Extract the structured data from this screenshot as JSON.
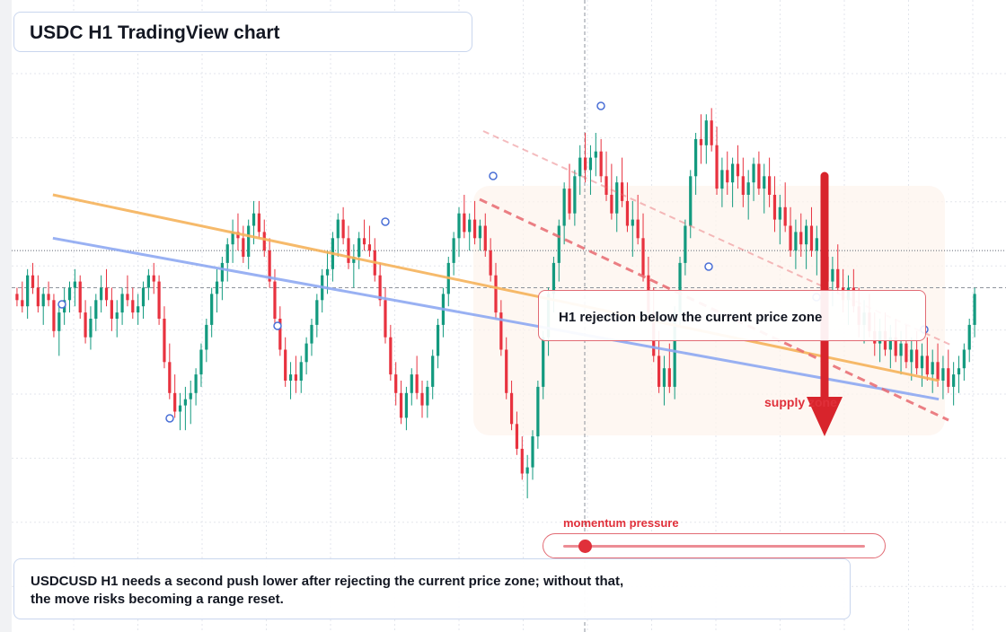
{
  "header": {
    "title": "USDC H1 TradingView chart"
  },
  "annotations": {
    "callout": "H1 rejection below the current price zone",
    "zone_label": "supply zone",
    "momentum_label": "momentum pressure",
    "momentum_level": 0.07
  },
  "note": {
    "line1": "USDCUSD H1 needs a second push lower after rejecting the current price zone; without that,",
    "line2": "the move risks becoming a range reset."
  },
  "colors": {
    "bull": "#139a7f",
    "bear": "#e8323f",
    "orange_trend": "#f6b35b",
    "blue_trend": "#8ea9f2",
    "bearish_channel": "#e86a70",
    "arrow": "#d8242c"
  },
  "chart_data": {
    "type": "candlestick",
    "title": "USDC H1 TradingView chart",
    "xlabel": "",
    "ylabel": "",
    "ylim": [
      0,
      100
    ],
    "grid": true,
    "current_price": 55,
    "series": [
      {
        "values": [
          [
            54,
            55,
            52,
            53
          ],
          [
            53,
            56,
            51,
            52
          ],
          [
            52,
            58,
            50,
            57
          ],
          [
            57,
            59,
            54,
            55
          ],
          [
            55,
            57,
            51,
            52
          ],
          [
            52,
            55,
            49,
            54
          ],
          [
            54,
            56,
            52,
            53
          ],
          [
            53,
            54,
            47,
            48
          ],
          [
            48,
            52,
            44,
            51
          ],
          [
            51,
            55,
            49,
            53
          ],
          [
            53,
            56,
            51,
            55
          ],
          [
            55,
            58,
            52,
            56
          ],
          [
            56,
            57,
            50,
            51
          ],
          [
            51,
            53,
            46,
            47
          ],
          [
            47,
            52,
            45,
            50
          ],
          [
            50,
            54,
            48,
            53
          ],
          [
            53,
            57,
            51,
            55
          ],
          [
            55,
            58,
            52,
            53
          ],
          [
            53,
            55,
            48,
            50
          ],
          [
            50,
            53,
            47,
            51
          ],
          [
            51,
            55,
            49,
            54
          ],
          [
            54,
            57,
            52,
            53
          ],
          [
            53,
            55,
            50,
            51
          ],
          [
            51,
            54,
            49,
            52
          ],
          [
            52,
            56,
            50,
            55
          ],
          [
            55,
            58,
            53,
            57
          ],
          [
            57,
            59,
            54,
            56
          ],
          [
            56,
            57,
            49,
            50
          ],
          [
            50,
            52,
            42,
            43
          ],
          [
            43,
            46,
            37,
            38
          ],
          [
            38,
            41,
            34,
            35
          ],
          [
            35,
            38,
            32,
            36
          ],
          [
            36,
            39,
            32,
            37
          ],
          [
            37,
            40,
            33,
            38
          ],
          [
            38,
            42,
            36,
            41
          ],
          [
            41,
            46,
            39,
            45
          ],
          [
            45,
            50,
            43,
            49
          ],
          [
            49,
            55,
            47,
            54
          ],
          [
            54,
            58,
            51,
            56
          ],
          [
            56,
            60,
            53,
            59
          ],
          [
            59,
            63,
            56,
            62
          ],
          [
            62,
            66,
            59,
            64
          ],
          [
            64,
            67,
            61,
            63
          ],
          [
            63,
            65,
            59,
            60
          ],
          [
            60,
            66,
            58,
            65
          ],
          [
            65,
            69,
            62,
            67
          ],
          [
            67,
            69,
            63,
            64
          ],
          [
            64,
            66,
            60,
            61
          ],
          [
            61,
            63,
            55,
            56
          ],
          [
            56,
            58,
            49,
            50
          ],
          [
            50,
            52,
            44,
            45
          ],
          [
            45,
            47,
            39,
            40
          ],
          [
            40,
            43,
            37,
            41
          ],
          [
            41,
            44,
            38,
            40
          ],
          [
            40,
            44,
            38,
            43
          ],
          [
            43,
            47,
            41,
            46
          ],
          [
            46,
            50,
            44,
            49
          ],
          [
            49,
            54,
            47,
            53
          ],
          [
            53,
            58,
            51,
            57
          ],
          [
            57,
            61,
            54,
            58
          ],
          [
            58,
            64,
            56,
            63
          ],
          [
            63,
            67,
            60,
            66
          ],
          [
            66,
            68,
            62,
            63
          ],
          [
            63,
            65,
            58,
            59
          ],
          [
            59,
            62,
            55,
            60
          ],
          [
            60,
            64,
            58,
            63
          ],
          [
            63,
            66,
            61,
            62
          ],
          [
            62,
            65,
            60,
            61
          ],
          [
            61,
            63,
            56,
            57
          ],
          [
            57,
            59,
            52,
            53
          ],
          [
            53,
            55,
            46,
            47
          ],
          [
            47,
            49,
            40,
            41
          ],
          [
            41,
            43,
            36,
            38
          ],
          [
            38,
            40,
            33,
            34
          ],
          [
            34,
            39,
            32,
            38
          ],
          [
            38,
            42,
            36,
            41
          ],
          [
            41,
            44,
            37,
            38
          ],
          [
            38,
            40,
            34,
            36
          ],
          [
            36,
            40,
            34,
            39
          ],
          [
            39,
            45,
            37,
            44
          ],
          [
            44,
            50,
            42,
            49
          ],
          [
            49,
            55,
            47,
            54
          ],
          [
            54,
            60,
            52,
            59
          ],
          [
            59,
            64,
            57,
            63
          ],
          [
            63,
            68,
            60,
            67
          ],
          [
            67,
            70,
            63,
            64
          ],
          [
            64,
            67,
            61,
            66
          ],
          [
            66,
            69,
            62,
            63
          ],
          [
            63,
            66,
            61,
            65
          ],
          [
            65,
            67,
            60,
            61
          ],
          [
            61,
            63,
            56,
            57
          ],
          [
            57,
            59,
            50,
            51
          ],
          [
            51,
            53,
            44,
            45
          ],
          [
            45,
            47,
            37,
            38
          ],
          [
            38,
            40,
            32,
            33
          ],
          [
            33,
            35,
            28,
            29
          ],
          [
            29,
            31,
            24,
            25
          ],
          [
            25,
            28,
            21,
            26
          ],
          [
            26,
            32,
            24,
            31
          ],
          [
            31,
            40,
            29,
            39
          ],
          [
            39,
            48,
            37,
            47
          ],
          [
            47,
            55,
            44,
            54
          ],
          [
            54,
            60,
            51,
            59
          ],
          [
            59,
            66,
            56,
            65
          ],
          [
            65,
            72,
            62,
            71
          ],
          [
            71,
            75,
            66,
            67
          ],
          [
            67,
            74,
            65,
            73
          ],
          [
            73,
            78,
            70,
            76
          ],
          [
            76,
            80,
            72,
            74
          ],
          [
            74,
            78,
            70,
            76
          ],
          [
            76,
            80,
            73,
            77
          ],
          [
            77,
            79,
            72,
            73
          ],
          [
            73,
            77,
            69,
            70
          ],
          [
            70,
            75,
            66,
            67
          ],
          [
            67,
            73,
            64,
            72
          ],
          [
            72,
            76,
            68,
            69
          ],
          [
            69,
            72,
            64,
            65
          ],
          [
            65,
            69,
            60,
            66
          ],
          [
            66,
            70,
            62,
            63
          ],
          [
            63,
            67,
            56,
            57
          ],
          [
            57,
            60,
            50,
            51
          ],
          [
            51,
            55,
            43,
            44
          ],
          [
            44,
            48,
            38,
            39
          ],
          [
            39,
            44,
            36,
            42
          ],
          [
            42,
            46,
            38,
            39
          ],
          [
            39,
            52,
            37,
            51
          ],
          [
            51,
            60,
            49,
            59
          ],
          [
            59,
            66,
            57,
            65
          ],
          [
            65,
            74,
            63,
            73
          ],
          [
            73,
            80,
            70,
            79
          ],
          [
            79,
            83,
            75,
            78
          ],
          [
            78,
            83,
            75,
            82
          ],
          [
            82,
            84,
            77,
            78
          ],
          [
            78,
            81,
            70,
            71
          ],
          [
            71,
            76,
            68,
            74
          ],
          [
            74,
            77,
            70,
            72
          ],
          [
            72,
            76,
            68,
            75
          ],
          [
            75,
            78,
            71,
            73
          ],
          [
            73,
            76,
            68,
            70
          ],
          [
            70,
            74,
            66,
            72
          ],
          [
            72,
            76,
            69,
            75
          ],
          [
            75,
            77,
            70,
            71
          ],
          [
            71,
            75,
            67,
            73
          ],
          [
            73,
            76,
            68,
            70
          ],
          [
            70,
            73,
            64,
            66
          ],
          [
            66,
            70,
            62,
            68
          ],
          [
            68,
            72,
            64,
            65
          ],
          [
            65,
            68,
            60,
            61
          ],
          [
            61,
            66,
            58,
            64
          ],
          [
            64,
            67,
            60,
            62
          ],
          [
            62,
            66,
            58,
            65
          ],
          [
            65,
            68,
            60,
            61
          ],
          [
            61,
            65,
            57,
            63
          ],
          [
            63,
            66,
            59,
            60
          ],
          [
            60,
            63,
            55,
            56
          ],
          [
            56,
            60,
            52,
            58
          ],
          [
            58,
            62,
            54,
            55
          ],
          [
            55,
            58,
            51,
            53
          ],
          [
            53,
            57,
            49,
            55
          ],
          [
            55,
            58,
            51,
            52
          ],
          [
            52,
            55,
            47,
            49
          ],
          [
            49,
            53,
            46,
            51
          ],
          [
            51,
            54,
            47,
            48
          ],
          [
            48,
            51,
            44,
            46
          ],
          [
            46,
            50,
            43,
            48
          ],
          [
            48,
            51,
            44,
            45
          ],
          [
            45,
            49,
            42,
            47
          ],
          [
            47,
            50,
            43,
            44
          ],
          [
            44,
            48,
            41,
            46
          ],
          [
            46,
            49,
            42,
            43
          ],
          [
            43,
            47,
            40,
            45
          ],
          [
            45,
            48,
            41,
            42
          ],
          [
            42,
            46,
            39,
            44
          ],
          [
            44,
            47,
            40,
            41
          ],
          [
            41,
            45,
            38,
            43
          ],
          [
            43,
            46,
            39,
            40
          ],
          [
            40,
            44,
            37,
            42
          ],
          [
            42,
            45,
            38,
            39
          ],
          [
            39,
            43,
            36,
            41
          ],
          [
            41,
            44,
            38,
            42
          ],
          [
            42,
            46,
            40,
            45
          ],
          [
            45,
            50,
            43,
            49
          ],
          [
            49,
            55,
            47,
            54
          ]
        ]
      }
    ],
    "overlays": [
      {
        "kind": "trendline",
        "color": "orange",
        "from": [
          0.04,
          70
        ],
        "to": [
          0.96,
          40
        ]
      },
      {
        "kind": "trendline",
        "color": "blue",
        "from": [
          0.04,
          63
        ],
        "to": [
          0.96,
          37
        ]
      },
      {
        "kind": "bearish channel",
        "style": "dashed"
      },
      {
        "kind": "arrow",
        "direction": "down"
      }
    ]
  }
}
